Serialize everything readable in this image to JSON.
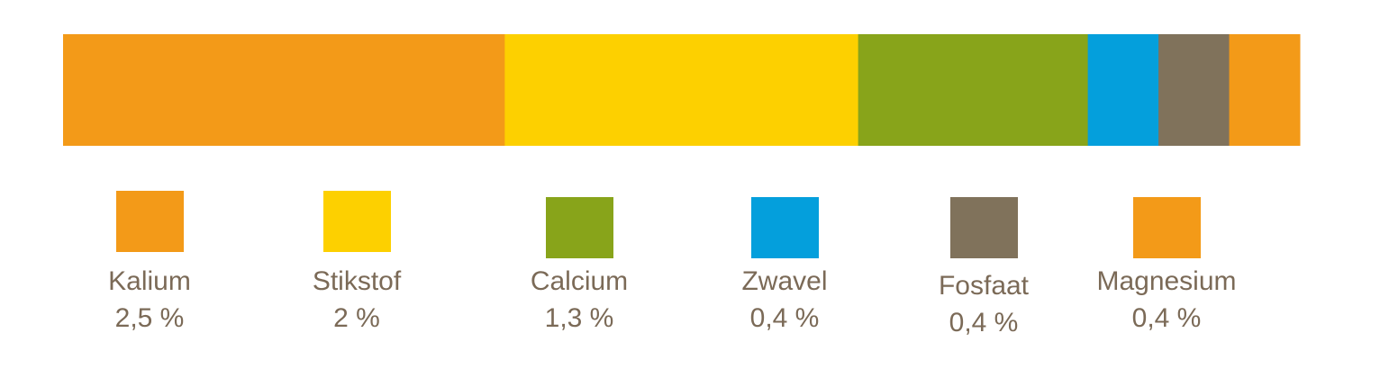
{
  "chart_data": {
    "type": "bar",
    "orientation": "horizontal",
    "stacked": true,
    "categories": [
      "Kalium",
      "Stikstof",
      "Calcium",
      "Zwavel",
      "Fosfaat",
      "Magnesium"
    ],
    "values": [
      2.5,
      2,
      1.3,
      0.4,
      0.4,
      0.4
    ],
    "value_labels": [
      "2,5 %",
      "2 %",
      "1,3 %",
      "0,4 %",
      "0,4 %",
      "0,4 %"
    ],
    "colors": [
      "#f39a18",
      "#fdd000",
      "#88a41a",
      "#049fdc",
      "#80725b",
      "#f39a18"
    ],
    "xlim": [
      0,
      7
    ],
    "unit": "%",
    "grid": false,
    "legend_position": "bottom",
    "title": "",
    "xlabel": "",
    "ylabel": ""
  }
}
